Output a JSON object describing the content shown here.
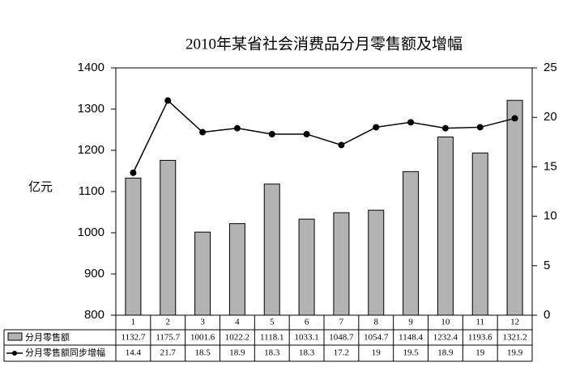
{
  "chart_data": {
    "type": "bar",
    "title": "2010年某省社会消费品分月零售额及增幅",
    "y_label": "亿元",
    "categories": [
      "1",
      "2",
      "3",
      "4",
      "5",
      "6",
      "7",
      "8",
      "9",
      "10",
      "11",
      "12"
    ],
    "series": [
      {
        "name": "分月零售额",
        "type": "bar",
        "color": "#b3b3b3",
        "values": [
          1132.7,
          1175.7,
          1001.6,
          1022.2,
          1118.1,
          1033.1,
          1048.7,
          1054.7,
          1148.4,
          1232.4,
          1193.6,
          1321.2
        ]
      },
      {
        "name": "分月零售额同步增幅",
        "type": "line",
        "axis": "y2",
        "color": "#000000",
        "values": [
          14.4,
          21.7,
          18.5,
          18.9,
          18.3,
          18.3,
          17.2,
          19,
          19.5,
          18.9,
          19,
          19.9
        ]
      }
    ],
    "ylim": [
      800,
      1400
    ],
    "yticks": [
      800,
      900,
      1000,
      1100,
      1200,
      1300,
      1400
    ],
    "y2lim": [
      0,
      25
    ],
    "y2ticks": [
      0,
      5,
      10,
      15,
      20,
      25
    ]
  }
}
